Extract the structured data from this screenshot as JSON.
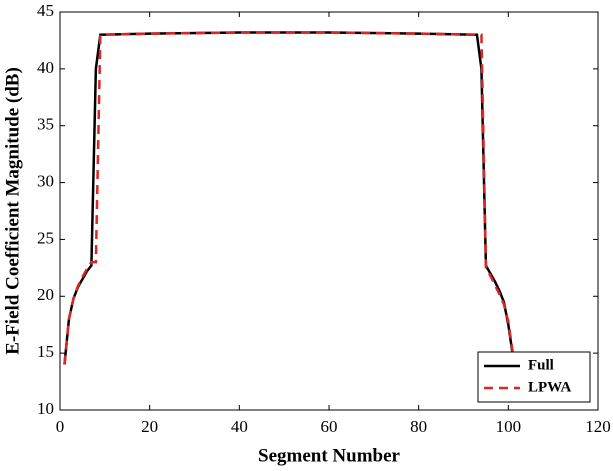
{
  "chart_data": {
    "type": "line",
    "xlabel": "Segment Number",
    "ylabel": "E-Field Coefficient Magnitude (dB)",
    "xlim": [
      0,
      120
    ],
    "xticks": [
      0,
      20,
      40,
      60,
      80,
      100,
      120
    ],
    "ylim": [
      10,
      45
    ],
    "yticks": [
      10,
      15,
      20,
      25,
      30,
      35,
      40,
      45
    ],
    "legend": "lower right",
    "series": [
      {
        "name": "Full",
        "color": "#000000",
        "linestyle": "solid",
        "x": [
          1,
          2,
          3,
          4,
          5,
          6,
          7,
          8,
          9,
          20,
          40,
          60,
          80,
          93,
          94,
          95,
          96,
          97,
          98,
          99,
          100,
          101
        ],
        "values": [
          14,
          18,
          19.8,
          20.8,
          21.5,
          22.2,
          22.7,
          40,
          43,
          43.1,
          43.2,
          43.2,
          43.1,
          43,
          40,
          22.7,
          22,
          21.3,
          20.5,
          19.5,
          17.5,
          14.8
        ]
      },
      {
        "name": "LPWA",
        "color": "#e02424",
        "linestyle": "dashed",
        "x": [
          1,
          2,
          3,
          4,
          5,
          6,
          7,
          8,
          9,
          20,
          40,
          60,
          80,
          94,
          95,
          96,
          97,
          98,
          99,
          100,
          101
        ],
        "values": [
          14,
          18,
          19.8,
          20.9,
          21.7,
          22.4,
          23,
          23,
          43,
          43.1,
          43.2,
          43.2,
          43.1,
          43,
          22.5,
          21.8,
          21,
          20.2,
          19.3,
          17.8,
          15
        ]
      }
    ]
  }
}
